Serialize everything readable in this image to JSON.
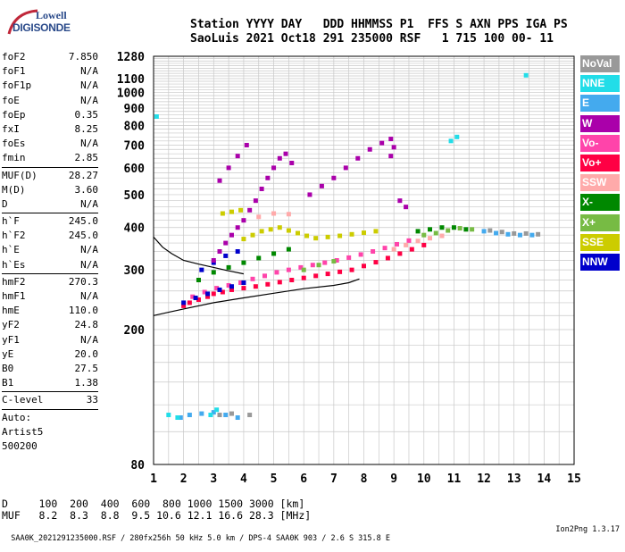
{
  "logo": {
    "line1": "Lowell",
    "line2": "DIGISONDE"
  },
  "header": {
    "labels": "Station YYYY DAY   DDD HHMMSS P1  FFS S AXN PPS IGA PS",
    "values": "SaoLuis 2021 Oct18 291 235000 RSF   1 715 100 00- 11"
  },
  "params_group1": [
    {
      "label": "foF2",
      "value": "7.850"
    },
    {
      "label": "foF1",
      "value": "N/A"
    },
    {
      "label": "foF1p",
      "value": "N/A"
    },
    {
      "label": "foE",
      "value": "N/A"
    },
    {
      "label": "foEp",
      "value": "0.35"
    },
    {
      "label": "fxI",
      "value": "8.25"
    },
    {
      "label": "foEs",
      "value": "N/A"
    },
    {
      "label": "fmin",
      "value": "2.85"
    }
  ],
  "params_group2": [
    {
      "label": "MUF(D)",
      "value": "28.27"
    },
    {
      "label": "M(D)",
      "value": "3.60"
    },
    {
      "label": "D",
      "value": "N/A"
    }
  ],
  "params_group3": [
    {
      "label": "h`F",
      "value": "245.0"
    },
    {
      "label": "h`F2",
      "value": "245.0"
    },
    {
      "label": "h`E",
      "value": "N/A"
    },
    {
      "label": "h`Es",
      "value": "N/A"
    }
  ],
  "params_group4": [
    {
      "label": "hmF2",
      "value": "270.3"
    },
    {
      "label": "hmF1",
      "value": "N/A"
    },
    {
      "label": "hmE",
      "value": "110.0"
    },
    {
      "label": "yF2",
      "value": "24.8"
    },
    {
      "label": "yF1",
      "value": "N/A"
    },
    {
      "label": "yE",
      "value": "20.0"
    },
    {
      "label": "B0",
      "value": "27.5"
    },
    {
      "label": "B1",
      "value": "1.38"
    }
  ],
  "params_group5": [
    {
      "label": "C-level",
      "value": "33"
    }
  ],
  "autoscaling": {
    "line1": "Auto:",
    "line2": "Artist5",
    "line3": "500200"
  },
  "legend": [
    {
      "label": "NoVal",
      "color": "#999999"
    },
    {
      "label": "NNE",
      "color": "#22dde8"
    },
    {
      "label": "E",
      "color": "#44aaee"
    },
    {
      "label": "W",
      "color": "#aa00aa"
    },
    {
      "label": "Vo-",
      "color": "#ff44aa"
    },
    {
      "label": "Vo+",
      "color": "#ff0044"
    },
    {
      "label": "SSW",
      "color": "#ffaaaa"
    },
    {
      "label": "X-",
      "color": "#008800"
    },
    {
      "label": "X+",
      "color": "#77bb44"
    },
    {
      "label": "SSE",
      "color": "#cccc00"
    },
    {
      "label": "NNW",
      "color": "#0000cc"
    }
  ],
  "muf_table": {
    "d_line": "D     100  200  400  600  800 1000 1500 3000 [km]",
    "muf_line": "MUF   8.2  8.3  8.8  9.5 10.6 12.1 16.6 28.3 [MHz]"
  },
  "footer": {
    "left": "SAA0K_2021291235000.RSF / 280fx256h 50 kHz 5.0 km / DPS-4 SAA0K 903 / 2.6 S 315.8 E",
    "right": "Ion2Png 1.3.17"
  },
  "chart_data": {
    "type": "scatter",
    "title": "",
    "xlabel": "",
    "ylabel": "",
    "xlim": [
      1,
      15
    ],
    "ylim": [
      80,
      1280
    ],
    "y_scale": "log",
    "x_ticks": [
      1,
      2,
      3,
      4,
      5,
      6,
      7,
      8,
      9,
      10,
      11,
      12,
      13,
      14,
      15
    ],
    "y_ticks": [
      80,
      200,
      300,
      400,
      500,
      600,
      700,
      800,
      900,
      1000,
      1100,
      1280
    ],
    "grid": true,
    "series": [
      {
        "name": "Vo+",
        "color": "#ff0044",
        "points": [
          [
            2.0,
            235
          ],
          [
            2.2,
            240
          ],
          [
            2.5,
            245
          ],
          [
            2.8,
            250
          ],
          [
            3.0,
            255
          ],
          [
            3.3,
            258
          ],
          [
            3.6,
            262
          ],
          [
            4.0,
            265
          ],
          [
            4.4,
            268
          ],
          [
            4.8,
            272
          ],
          [
            5.2,
            276
          ],
          [
            5.6,
            280
          ],
          [
            6.0,
            284
          ],
          [
            6.4,
            288
          ],
          [
            6.8,
            292
          ],
          [
            7.2,
            296
          ],
          [
            7.6,
            300
          ],
          [
            8.0,
            308
          ],
          [
            8.4,
            316
          ],
          [
            8.8,
            325
          ],
          [
            9.2,
            335
          ],
          [
            9.6,
            345
          ],
          [
            10.0,
            355
          ]
        ]
      },
      {
        "name": "Vo-",
        "color": "#ff44aa",
        "points": [
          [
            2.3,
            250
          ],
          [
            2.7,
            258
          ],
          [
            3.1,
            265
          ],
          [
            3.5,
            270
          ],
          [
            3.9,
            275
          ],
          [
            4.3,
            282
          ],
          [
            4.7,
            288
          ],
          [
            5.1,
            295
          ],
          [
            5.5,
            300
          ],
          [
            5.9,
            305
          ],
          [
            6.3,
            310
          ],
          [
            6.7,
            315
          ],
          [
            7.1,
            320
          ],
          [
            7.5,
            326
          ],
          [
            7.9,
            333
          ],
          [
            8.3,
            340
          ],
          [
            8.7,
            348
          ],
          [
            9.1,
            357
          ],
          [
            9.5,
            366
          ]
        ]
      },
      {
        "name": "NNW",
        "color": "#0000cc",
        "points": [
          [
            2.0,
            240
          ],
          [
            2.4,
            248
          ],
          [
            2.8,
            255
          ],
          [
            3.2,
            262
          ],
          [
            3.6,
            268
          ],
          [
            4.0,
            275
          ],
          [
            2.6,
            300
          ],
          [
            3.0,
            315
          ],
          [
            3.4,
            330
          ],
          [
            3.8,
            340
          ]
        ]
      },
      {
        "name": "W",
        "color": "#aa00aa",
        "points": [
          [
            3.0,
            320
          ],
          [
            3.2,
            340
          ],
          [
            3.4,
            360
          ],
          [
            3.6,
            380
          ],
          [
            3.8,
            400
          ],
          [
            4.0,
            420
          ],
          [
            4.2,
            450
          ],
          [
            4.4,
            480
          ],
          [
            4.6,
            520
          ],
          [
            4.8,
            560
          ],
          [
            5.0,
            600
          ],
          [
            5.2,
            640
          ],
          [
            5.4,
            660
          ],
          [
            5.6,
            620
          ],
          [
            3.2,
            550
          ],
          [
            3.5,
            600
          ],
          [
            3.8,
            650
          ],
          [
            4.1,
            700
          ],
          [
            6.2,
            500
          ],
          [
            6.6,
            530
          ],
          [
            7.0,
            560
          ],
          [
            7.4,
            600
          ],
          [
            7.8,
            640
          ],
          [
            8.2,
            680
          ],
          [
            8.6,
            710
          ],
          [
            8.9,
            730
          ],
          [
            9.0,
            690
          ],
          [
            8.9,
            650
          ],
          [
            9.2,
            480
          ],
          [
            9.4,
            460
          ]
        ]
      },
      {
        "name": "SSE",
        "color": "#cccc00",
        "points": [
          [
            4.0,
            370
          ],
          [
            4.3,
            380
          ],
          [
            4.6,
            390
          ],
          [
            4.9,
            395
          ],
          [
            5.2,
            400
          ],
          [
            5.5,
            392
          ],
          [
            5.8,
            385
          ],
          [
            6.1,
            378
          ],
          [
            6.4,
            372
          ],
          [
            6.8,
            375
          ],
          [
            7.2,
            378
          ],
          [
            7.6,
            382
          ],
          [
            8.0,
            386
          ],
          [
            8.4,
            390
          ],
          [
            3.3,
            440
          ],
          [
            3.6,
            445
          ],
          [
            3.9,
            450
          ]
        ]
      },
      {
        "name": "X-",
        "color": "#008800",
        "points": [
          [
            2.5,
            280
          ],
          [
            3.0,
            295
          ],
          [
            3.5,
            305
          ],
          [
            4.0,
            315
          ],
          [
            4.5,
            325
          ],
          [
            5.0,
            335
          ],
          [
            5.5,
            345
          ],
          [
            9.8,
            390
          ],
          [
            10.2,
            395
          ],
          [
            10.6,
            400
          ],
          [
            11.0,
            400
          ],
          [
            11.4,
            395
          ]
        ]
      },
      {
        "name": "X+",
        "color": "#77bb44",
        "points": [
          [
            10.0,
            380
          ],
          [
            10.4,
            385
          ],
          [
            10.8,
            392
          ],
          [
            11.2,
            398
          ],
          [
            11.6,
            395
          ],
          [
            6.0,
            300
          ],
          [
            6.5,
            310
          ],
          [
            7.0,
            318
          ]
        ]
      },
      {
        "name": "SSW",
        "color": "#ffaaaa",
        "points": [
          [
            9.0,
            345
          ],
          [
            9.4,
            355
          ],
          [
            9.8,
            365
          ],
          [
            10.2,
            372
          ],
          [
            10.6,
            378
          ],
          [
            4.5,
            430
          ],
          [
            5.0,
            440
          ],
          [
            5.5,
            438
          ]
        ]
      },
      {
        "name": "E",
        "color": "#44aaee",
        "points": [
          [
            1.9,
            110
          ],
          [
            2.2,
            112
          ],
          [
            2.6,
            113
          ],
          [
            3.0,
            114
          ],
          [
            3.4,
            112
          ],
          [
            3.8,
            110
          ],
          [
            12.0,
            390
          ],
          [
            12.4,
            385
          ],
          [
            12.8,
            382
          ],
          [
            13.2,
            380
          ],
          [
            13.6,
            380
          ]
        ]
      },
      {
        "name": "NNE",
        "color": "#22dde8",
        "points": [
          [
            1.5,
            112
          ],
          [
            1.8,
            110
          ],
          [
            2.9,
            112
          ],
          [
            3.1,
            116
          ],
          [
            10.9,
            720
          ],
          [
            11.1,
            740
          ],
          [
            13.4,
            1125
          ],
          [
            1.1,
            850
          ]
        ]
      },
      {
        "name": "NoVal",
        "color": "#999999",
        "points": [
          [
            3.2,
            112
          ],
          [
            3.6,
            113
          ],
          [
            4.2,
            112
          ],
          [
            12.2,
            392
          ],
          [
            12.6,
            388
          ],
          [
            13.0,
            384
          ],
          [
            13.4,
            384
          ],
          [
            13.8,
            382
          ]
        ]
      }
    ],
    "profile_curve": [
      [
        1.0,
        220
      ],
      [
        1.5,
        225
      ],
      [
        2.0,
        230
      ],
      [
        3.0,
        240
      ],
      [
        4.0,
        248
      ],
      [
        5.0,
        256
      ],
      [
        6.0,
        264
      ],
      [
        7.0,
        270
      ],
      [
        7.5,
        275
      ],
      [
        7.85,
        282
      ]
    ],
    "profile_curve_upper": [
      [
        1.0,
        375
      ],
      [
        1.3,
        350
      ],
      [
        1.6,
        335
      ],
      [
        2.0,
        320
      ],
      [
        2.5,
        312
      ],
      [
        3.0,
        305
      ],
      [
        3.5,
        298
      ],
      [
        4.0,
        292
      ]
    ]
  }
}
